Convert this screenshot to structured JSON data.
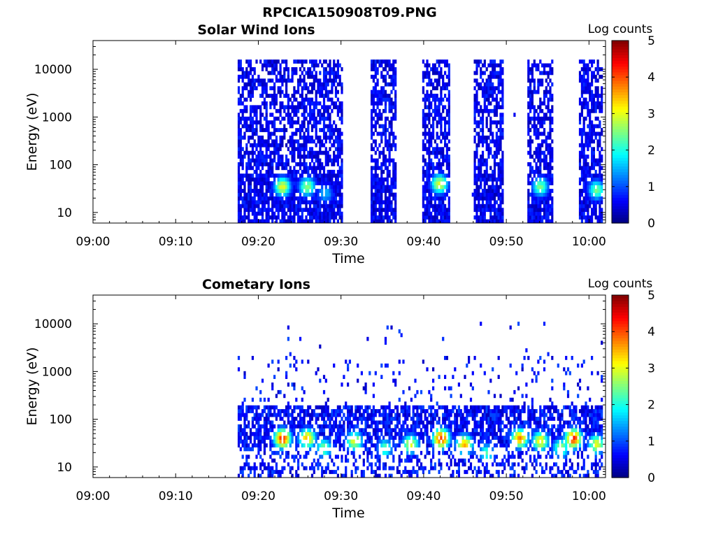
{
  "figure_title": "RPCICA150908T09.PNG",
  "chart_data": [
    {
      "type": "heatmap",
      "title": "Solar Wind Ions",
      "xlabel": "Time",
      "ylabel": "Energy (eV)",
      "colorbar_label": "Log counts",
      "colorbar_ticks": [
        "0",
        "1",
        "2",
        "3",
        "4",
        "5"
      ],
      "clim": [
        0,
        5
      ],
      "colormap": "jet",
      "x_ticks": [
        "09:00",
        "09:10",
        "09:20",
        "09:30",
        "09:40",
        "09:50",
        "10:00"
      ],
      "x_range_min": [
        0,
        62
      ],
      "y_ticks": [
        "10",
        "100",
        "1000",
        "10000"
      ],
      "y_scale": "log",
      "y_range_eV": [
        6,
        40000
      ],
      "data_coverage_min": [
        17.5,
        61.5
      ],
      "bursts": [
        {
          "start": 17.5,
          "end": 30.0,
          "peak_eV": 35,
          "peak_log": 3.0
        },
        {
          "start": 33.5,
          "end": 36.5,
          "peak_eV": 30,
          "peak_log": 1.2
        },
        {
          "start": 39.8,
          "end": 43.0,
          "peak_eV": 35,
          "peak_log": 3.0
        },
        {
          "start": 46.0,
          "end": 49.5,
          "peak_eV": 30,
          "peak_log": 1.0
        },
        {
          "start": 52.5,
          "end": 55.6,
          "peak_eV": 35,
          "peak_log": 2.5
        },
        {
          "start": 58.7,
          "end": 61.5,
          "peak_eV": 30,
          "peak_log": 2.5
        }
      ],
      "hotspots": [
        {
          "t": 22.8,
          "eV": 35,
          "log": 3.0
        },
        {
          "t": 25.8,
          "eV": 35,
          "log": 2.6
        },
        {
          "t": 28.0,
          "eV": 25,
          "log": 1.6
        },
        {
          "t": 41.8,
          "eV": 40,
          "log": 3.0
        },
        {
          "t": 54.0,
          "eV": 35,
          "log": 2.5
        },
        {
          "t": 60.8,
          "eV": 30,
          "log": 2.5
        }
      ]
    },
    {
      "type": "heatmap",
      "title": "Cometary Ions",
      "xlabel": "Time",
      "ylabel": "Energy (eV)",
      "colorbar_label": "Log counts",
      "colorbar_ticks": [
        "0",
        "1",
        "2",
        "3",
        "4",
        "5"
      ],
      "clim": [
        0,
        5
      ],
      "colormap": "jet",
      "x_ticks": [
        "09:00",
        "09:10",
        "09:20",
        "09:30",
        "09:40",
        "09:50",
        "10:00"
      ],
      "x_range_min": [
        0,
        62
      ],
      "y_ticks": [
        "10",
        "100",
        "1000",
        "10000"
      ],
      "y_scale": "log",
      "y_range_eV": [
        6,
        40000
      ],
      "data_coverage_min": [
        17.5,
        61.5
      ],
      "hotspots": [
        {
          "t": 22.8,
          "eV": 40,
          "log": 4.2
        },
        {
          "t": 25.8,
          "eV": 40,
          "log": 3.5
        },
        {
          "t": 27.8,
          "eV": 25,
          "log": 2.5
        },
        {
          "t": 31.5,
          "eV": 35,
          "log": 3.0
        },
        {
          "t": 35.2,
          "eV": 25,
          "log": 2.3
        },
        {
          "t": 38.3,
          "eV": 30,
          "log": 3.0
        },
        {
          "t": 42.0,
          "eV": 40,
          "log": 4.2
        },
        {
          "t": 44.8,
          "eV": 30,
          "log": 3.5
        },
        {
          "t": 47.5,
          "eV": 20,
          "log": 2.2
        },
        {
          "t": 51.5,
          "eV": 40,
          "log": 3.7
        },
        {
          "t": 54.0,
          "eV": 35,
          "log": 3.2
        },
        {
          "t": 56.5,
          "eV": 25,
          "log": 2.6
        },
        {
          "t": 58.0,
          "eV": 40,
          "log": 4.2
        },
        {
          "t": 60.8,
          "eV": 30,
          "log": 3.0
        }
      ]
    }
  ]
}
